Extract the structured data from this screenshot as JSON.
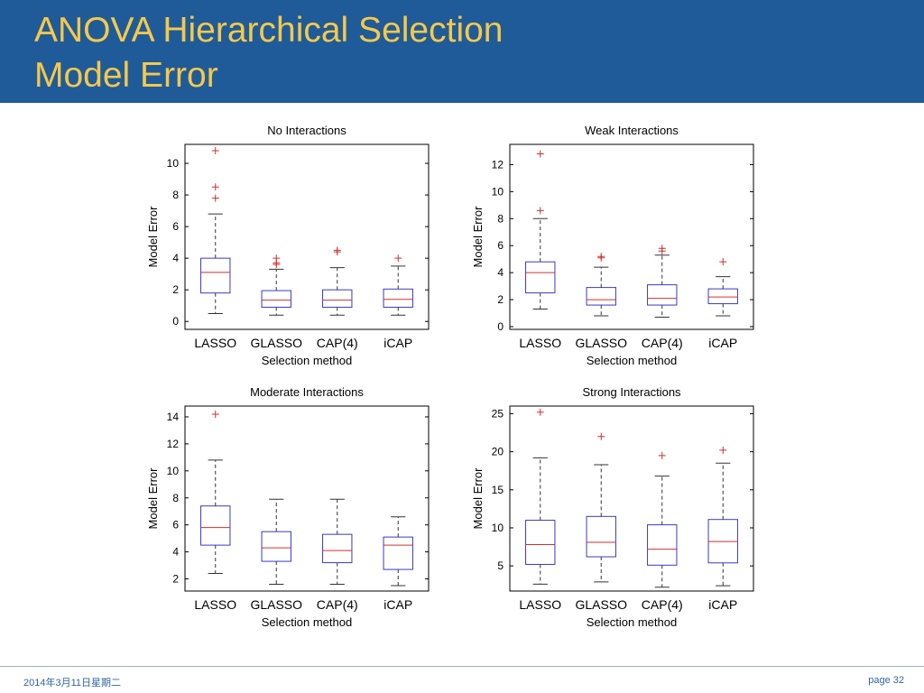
{
  "slide": {
    "title_line1": "ANOVA Hierarchical Selection",
    "title_line2": "Model Error",
    "footer_date": "2014年3月11日星期二",
    "footer_page": "page 32",
    "colors": {
      "header_bg": "#1f5b98",
      "title": "#f5c84c",
      "box": "#3a3ac8",
      "median": "#d03030",
      "outlier": "#d03030",
      "whisker": "#333333"
    }
  },
  "chart_data": [
    {
      "type": "boxplot",
      "title": "No Interactions",
      "xlabel": "Selection method",
      "ylabel": "Model Error",
      "categories": [
        "LASSO",
        "GLASSO",
        "CAP(4)",
        "iCAP"
      ],
      "ylim": [
        -0.5,
        11.2
      ],
      "yticks": [
        0,
        2,
        4,
        6,
        8,
        10
      ],
      "boxes": [
        {
          "whisker_low": 0.5,
          "q1": 1.8,
          "median": 3.1,
          "q3": 4.0,
          "whisker_high": 6.8,
          "outliers": [
            7.8,
            8.5,
            10.8
          ]
        },
        {
          "whisker_low": 0.4,
          "q1": 0.9,
          "median": 1.35,
          "q3": 1.95,
          "whisker_high": 3.3,
          "outliers": [
            3.6,
            3.7,
            4.0
          ]
        },
        {
          "whisker_low": 0.4,
          "q1": 0.9,
          "median": 1.35,
          "q3": 2.0,
          "whisker_high": 3.4,
          "outliers": [
            4.4,
            4.5
          ]
        },
        {
          "whisker_low": 0.4,
          "q1": 0.9,
          "median": 1.4,
          "q3": 2.05,
          "whisker_high": 3.5,
          "outliers": [
            4.0
          ]
        }
      ]
    },
    {
      "type": "boxplot",
      "title": "Weak Interactions",
      "xlabel": "Selection method",
      "ylabel": "Model Error",
      "categories": [
        "LASSO",
        "GLASSO",
        "CAP(4)",
        "iCAP"
      ],
      "ylim": [
        -0.2,
        13.5
      ],
      "yticks": [
        0,
        2,
        4,
        6,
        8,
        10,
        12
      ],
      "boxes": [
        {
          "whisker_low": 1.3,
          "q1": 2.5,
          "median": 4.0,
          "q3": 4.8,
          "whisker_high": 8.0,
          "outliers": [
            8.6,
            12.8
          ]
        },
        {
          "whisker_low": 0.8,
          "q1": 1.6,
          "median": 2.0,
          "q3": 2.9,
          "whisker_high": 4.4,
          "outliers": [
            5.1,
            5.2
          ]
        },
        {
          "whisker_low": 0.7,
          "q1": 1.6,
          "median": 2.1,
          "q3": 3.1,
          "whisker_high": 5.3,
          "outliers": [
            5.6,
            5.8
          ]
        },
        {
          "whisker_low": 0.8,
          "q1": 1.7,
          "median": 2.2,
          "q3": 2.8,
          "whisker_high": 3.7,
          "outliers": [
            4.8
          ]
        }
      ]
    },
    {
      "type": "boxplot",
      "title": "Moderate Interactions",
      "xlabel": "Selection method",
      "ylabel": "Model Error",
      "categories": [
        "LASSO",
        "GLASSO",
        "CAP(4)",
        "iCAP"
      ],
      "ylim": [
        1.1,
        14.8
      ],
      "yticks": [
        2,
        4,
        6,
        8,
        10,
        12,
        14
      ],
      "boxes": [
        {
          "whisker_low": 2.4,
          "q1": 4.5,
          "median": 5.8,
          "q3": 7.4,
          "whisker_high": 10.8,
          "outliers": [
            14.2
          ]
        },
        {
          "whisker_low": 1.6,
          "q1": 3.3,
          "median": 4.3,
          "q3": 5.5,
          "whisker_high": 7.9,
          "outliers": []
        },
        {
          "whisker_low": 1.6,
          "q1": 3.2,
          "median": 4.1,
          "q3": 5.3,
          "whisker_high": 7.9,
          "outliers": []
        },
        {
          "whisker_low": 1.5,
          "q1": 2.7,
          "median": 4.5,
          "q3": 5.1,
          "whisker_high": 6.6,
          "outliers": []
        }
      ]
    },
    {
      "type": "boxplot",
      "title": "Strong Interactions",
      "xlabel": "Selection method",
      "ylabel": "Model Error",
      "categories": [
        "LASSO",
        "GLASSO",
        "CAP(4)",
        "iCAP"
      ],
      "ylim": [
        1.7,
        26.0
      ],
      "yticks": [
        5,
        10,
        15,
        20,
        25
      ],
      "boxes": [
        {
          "whisker_low": 2.6,
          "q1": 5.2,
          "median": 7.8,
          "q3": 11.0,
          "whisker_high": 19.2,
          "outliers": [
            25.2
          ]
        },
        {
          "whisker_low": 2.9,
          "q1": 6.2,
          "median": 8.1,
          "q3": 11.5,
          "whisker_high": 18.3,
          "outliers": [
            22.0
          ]
        },
        {
          "whisker_low": 2.2,
          "q1": 5.1,
          "median": 7.2,
          "q3": 10.4,
          "whisker_high": 16.8,
          "outliers": [
            19.5
          ]
        },
        {
          "whisker_low": 2.4,
          "q1": 5.4,
          "median": 8.2,
          "q3": 11.1,
          "whisker_high": 18.5,
          "outliers": [
            20.2
          ]
        }
      ]
    }
  ]
}
